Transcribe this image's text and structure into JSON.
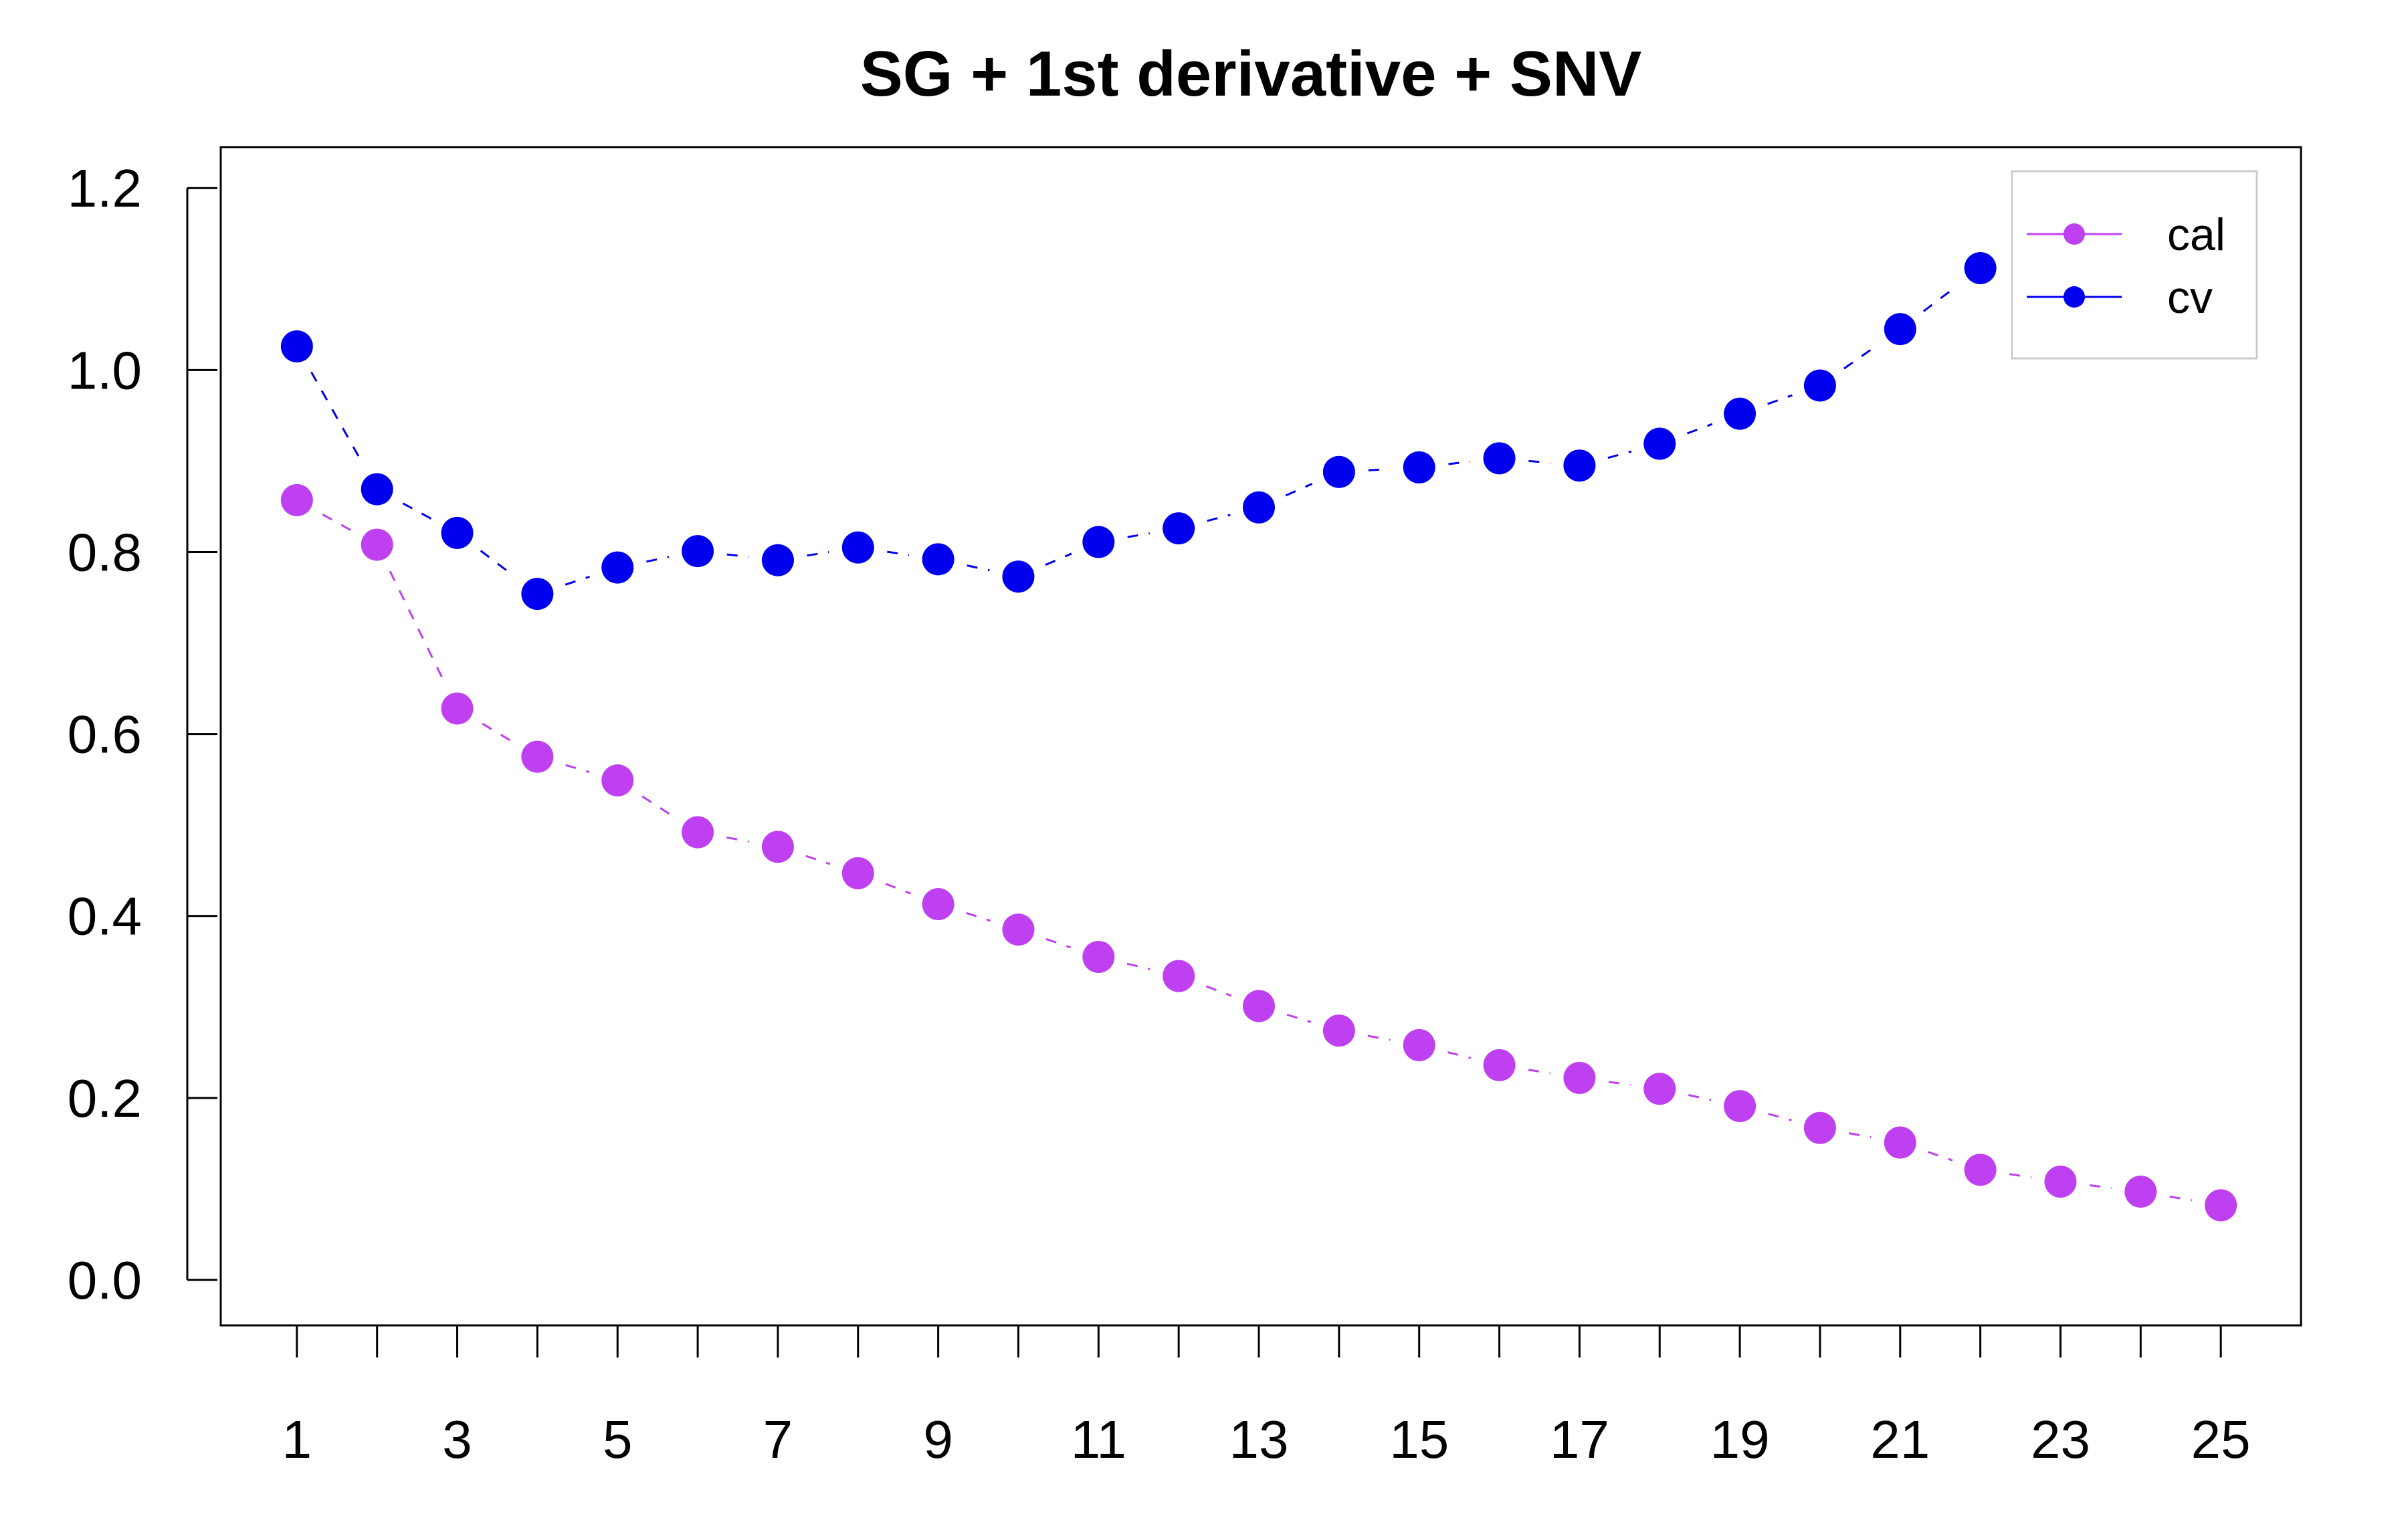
{
  "chart_data": {
    "type": "line",
    "title": "SG + 1st derivative + SNV",
    "xlabel": "",
    "ylabel": "",
    "x": [
      1,
      2,
      3,
      4,
      5,
      6,
      7,
      8,
      9,
      10,
      11,
      12,
      13,
      14,
      15,
      16,
      17,
      18,
      19,
      20,
      21,
      22,
      23,
      24,
      25
    ],
    "xlim": [
      0.05,
      26.0
    ],
    "ylim": [
      -0.05,
      1.245
    ],
    "xticks": [
      1,
      2,
      3,
      4,
      5,
      6,
      7,
      8,
      9,
      10,
      11,
      12,
      13,
      14,
      15,
      16,
      17,
      18,
      19,
      20,
      21,
      22,
      23,
      24,
      25
    ],
    "xtick_labels": [
      "1",
      "",
      "3",
      "",
      "5",
      "",
      "7",
      "",
      "9",
      "",
      "11",
      "",
      "13",
      "",
      "15",
      "",
      "17",
      "",
      "19",
      "",
      "21",
      "",
      "23",
      "",
      "25"
    ],
    "yticks": [
      0.0,
      0.2,
      0.4,
      0.6,
      0.8,
      1.0,
      1.2
    ],
    "ytick_labels": [
      "0.0",
      "0.2",
      "0.4",
      "0.6",
      "0.8",
      "1.0",
      "1.2"
    ],
    "grid": false,
    "legend": "top-right",
    "series": [
      {
        "name": "cal",
        "color": "#bf40f0",
        "values": [
          0.857,
          0.808,
          0.628,
          0.575,
          0.549,
          0.492,
          0.476,
          0.447,
          0.413,
          0.385,
          0.355,
          0.334,
          0.301,
          0.274,
          0.258,
          0.236,
          0.222,
          0.21,
          0.191,
          0.167,
          0.151,
          0.121,
          0.108,
          0.097,
          0.082
        ]
      },
      {
        "name": "cv",
        "color": "#0000ee",
        "values": [
          1.026,
          0.869,
          0.821,
          0.754,
          0.783,
          0.801,
          0.791,
          0.805,
          0.792,
          0.773,
          0.811,
          0.826,
          0.849,
          0.888,
          0.893,
          0.903,
          0.895,
          0.919,
          0.952,
          0.983,
          1.045,
          1.112,
          null,
          null,
          null
        ]
      }
    ]
  }
}
